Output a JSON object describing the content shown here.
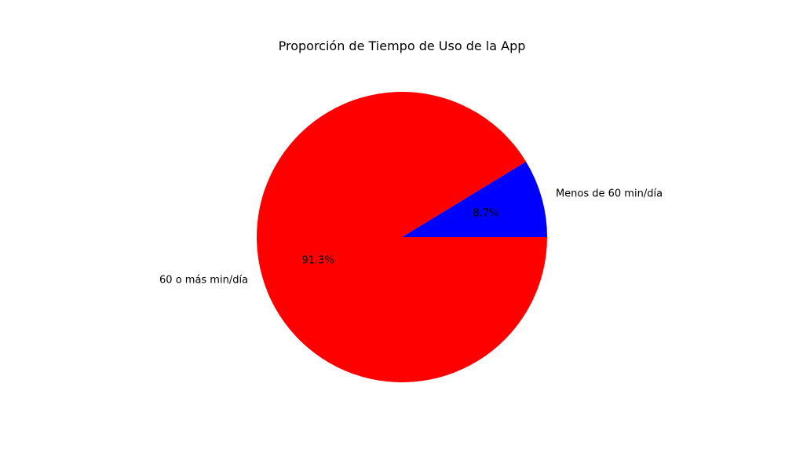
{
  "chart_data": {
    "type": "pie",
    "title": "Proporción de Tiempo de Uso de la App",
    "slices": [
      {
        "label": "Menos de 60 min/día",
        "value": 8.7,
        "pct_label": "8.7%",
        "color": "#0000ff"
      },
      {
        "label": "60 o más min/día",
        "value": 91.3,
        "pct_label": "91.3%",
        "color": "#ff0000"
      }
    ],
    "start_angle_deg": 0,
    "direction": "counterclockwise"
  }
}
